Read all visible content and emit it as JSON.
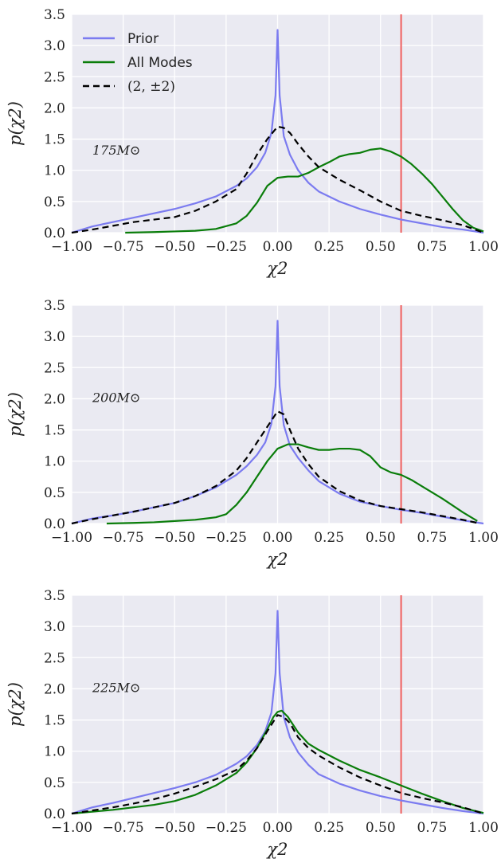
{
  "colors": {
    "background": "#eaeaf2",
    "grid": "#ffffff",
    "prior": "#7b7bf0",
    "all_modes": "#0a7d0a",
    "mode_22": "#000000",
    "true_value": "#f06a6a"
  },
  "legend": {
    "placement": "top-left of first panel",
    "entries": [
      {
        "label": "Prior",
        "style": "solid",
        "color_key": "prior"
      },
      {
        "label": "All Modes",
        "style": "solid",
        "color_key": "all_modes"
      },
      {
        "label": "(2, ±2)",
        "style": "dashed",
        "color_key": "mode_22"
      }
    ]
  },
  "chart_data": [
    {
      "type": "line",
      "annotation": "175M⊙",
      "xlabel": "χ2",
      "ylabel": "p(χ2)",
      "xlim": [
        -1.0,
        1.0
      ],
      "ylim": [
        0,
        3.5
      ],
      "x_ticks": [
        "−1.00",
        "−0.75",
        "−0.50",
        "−0.25",
        "0.00",
        "0.25",
        "0.50",
        "0.75",
        "1.00"
      ],
      "y_ticks": [
        "0.0",
        "0.5",
        "1.0",
        "1.5",
        "2.0",
        "2.5",
        "3.0",
        "3.5"
      ],
      "grid": true,
      "vline": 0.6,
      "series": [
        {
          "name": "Prior",
          "color_key": "prior",
          "dashed": false,
          "x": [
            -1.0,
            -0.9,
            -0.8,
            -0.7,
            -0.6,
            -0.5,
            -0.4,
            -0.3,
            -0.2,
            -0.15,
            -0.1,
            -0.06,
            -0.03,
            -0.01,
            0.0,
            0.01,
            0.03,
            0.06,
            0.1,
            0.15,
            0.2,
            0.3,
            0.4,
            0.5,
            0.6,
            0.7,
            0.8,
            0.9,
            1.0
          ],
          "y": [
            0.0,
            0.1,
            0.17,
            0.24,
            0.31,
            0.38,
            0.47,
            0.58,
            0.75,
            0.87,
            1.05,
            1.28,
            1.6,
            2.2,
            3.25,
            2.2,
            1.55,
            1.25,
            1.0,
            0.8,
            0.66,
            0.5,
            0.38,
            0.29,
            0.21,
            0.15,
            0.09,
            0.05,
            0.0
          ]
        },
        {
          "name": "All Modes",
          "color_key": "all_modes",
          "dashed": false,
          "x": [
            -0.74,
            -0.6,
            -0.5,
            -0.4,
            -0.3,
            -0.2,
            -0.15,
            -0.1,
            -0.05,
            0.0,
            0.05,
            0.1,
            0.15,
            0.2,
            0.25,
            0.3,
            0.35,
            0.4,
            0.45,
            0.5,
            0.55,
            0.6,
            0.65,
            0.7,
            0.75,
            0.8,
            0.85,
            0.9,
            0.95,
            1.0
          ],
          "y": [
            0.0,
            0.01,
            0.02,
            0.03,
            0.06,
            0.15,
            0.27,
            0.48,
            0.75,
            0.88,
            0.9,
            0.9,
            0.96,
            1.05,
            1.13,
            1.22,
            1.26,
            1.28,
            1.33,
            1.35,
            1.3,
            1.22,
            1.1,
            0.95,
            0.78,
            0.58,
            0.38,
            0.2,
            0.08,
            0.02
          ]
        },
        {
          "name": "(2, ±2)",
          "color_key": "mode_22",
          "dashed": true,
          "x": [
            -1.0,
            -0.9,
            -0.8,
            -0.7,
            -0.6,
            -0.5,
            -0.4,
            -0.3,
            -0.2,
            -0.15,
            -0.1,
            -0.05,
            0.0,
            0.03,
            0.06,
            0.1,
            0.15,
            0.2,
            0.3,
            0.4,
            0.5,
            0.6,
            0.7,
            0.8,
            0.9,
            1.0
          ],
          "y": [
            0.0,
            0.05,
            0.11,
            0.17,
            0.21,
            0.25,
            0.35,
            0.5,
            0.7,
            0.95,
            1.25,
            1.5,
            1.7,
            1.68,
            1.6,
            1.42,
            1.22,
            1.05,
            0.85,
            0.68,
            0.5,
            0.35,
            0.27,
            0.2,
            0.12,
            0.0
          ]
        }
      ]
    },
    {
      "type": "line",
      "annotation": "200M⊙",
      "xlabel": "χ2",
      "ylabel": "p(χ2)",
      "xlim": [
        -1.0,
        1.0
      ],
      "ylim": [
        0,
        3.5
      ],
      "x_ticks": [
        "−1.00",
        "−0.75",
        "−0.50",
        "−0.25",
        "0.00",
        "0.25",
        "0.50",
        "0.75",
        "1.00"
      ],
      "y_ticks": [
        "0.0",
        "0.5",
        "1.0",
        "1.5",
        "2.0",
        "2.5",
        "3.0",
        "3.5"
      ],
      "grid": true,
      "vline": 0.6,
      "series": [
        {
          "name": "Prior",
          "color_key": "prior",
          "dashed": false,
          "x": [
            -1.0,
            -0.9,
            -0.8,
            -0.7,
            -0.6,
            -0.5,
            -0.4,
            -0.3,
            -0.2,
            -0.15,
            -0.1,
            -0.06,
            -0.03,
            -0.01,
            0.0,
            0.01,
            0.03,
            0.06,
            0.1,
            0.15,
            0.2,
            0.3,
            0.4,
            0.5,
            0.6,
            0.7,
            0.8,
            0.9,
            1.0
          ],
          "y": [
            0.0,
            0.08,
            0.13,
            0.19,
            0.26,
            0.33,
            0.44,
            0.58,
            0.78,
            0.92,
            1.1,
            1.3,
            1.6,
            2.2,
            3.25,
            2.2,
            1.58,
            1.25,
            1.05,
            0.85,
            0.68,
            0.48,
            0.35,
            0.28,
            0.22,
            0.17,
            0.11,
            0.05,
            0.0
          ]
        },
        {
          "name": "All Modes",
          "color_key": "all_modes",
          "dashed": false,
          "x": [
            -0.83,
            -0.7,
            -0.6,
            -0.5,
            -0.4,
            -0.3,
            -0.25,
            -0.2,
            -0.15,
            -0.1,
            -0.05,
            0.0,
            0.05,
            0.1,
            0.15,
            0.2,
            0.25,
            0.3,
            0.35,
            0.4,
            0.45,
            0.5,
            0.55,
            0.6,
            0.65,
            0.7,
            0.8,
            0.9,
            0.97
          ],
          "y": [
            0.0,
            0.01,
            0.02,
            0.04,
            0.06,
            0.1,
            0.15,
            0.3,
            0.5,
            0.75,
            1.0,
            1.2,
            1.27,
            1.27,
            1.22,
            1.18,
            1.18,
            1.2,
            1.2,
            1.18,
            1.08,
            0.9,
            0.82,
            0.78,
            0.7,
            0.6,
            0.4,
            0.18,
            0.04
          ]
        },
        {
          "name": "(2, ±2)",
          "color_key": "mode_22",
          "dashed": true,
          "x": [
            -1.0,
            -0.9,
            -0.8,
            -0.7,
            -0.6,
            -0.5,
            -0.4,
            -0.3,
            -0.2,
            -0.15,
            -0.1,
            -0.05,
            0.0,
            0.03,
            0.06,
            0.1,
            0.15,
            0.2,
            0.3,
            0.4,
            0.5,
            0.6,
            0.7,
            0.8,
            0.9,
            0.97
          ],
          "y": [
            0.0,
            0.07,
            0.13,
            0.19,
            0.26,
            0.33,
            0.44,
            0.6,
            0.85,
            1.05,
            1.3,
            1.55,
            1.8,
            1.75,
            1.5,
            1.2,
            0.95,
            0.75,
            0.52,
            0.37,
            0.28,
            0.23,
            0.18,
            0.12,
            0.06,
            0.01
          ]
        }
      ]
    },
    {
      "type": "line",
      "annotation": "225M⊙",
      "xlabel": "χ2",
      "ylabel": "p(χ2)",
      "xlim": [
        -1.0,
        1.0
      ],
      "ylim": [
        0,
        3.5
      ],
      "x_ticks": [
        "−1.00",
        "−0.75",
        "−0.50",
        "−0.25",
        "0.00",
        "0.25",
        "0.50",
        "0.75",
        "1.00"
      ],
      "y_ticks": [
        "0.0",
        "0.5",
        "1.0",
        "1.5",
        "2.0",
        "2.5",
        "3.0",
        "3.5"
      ],
      "grid": true,
      "vline": 0.6,
      "series": [
        {
          "name": "Prior",
          "color_key": "prior",
          "dashed": false,
          "x": [
            -1.0,
            -0.9,
            -0.8,
            -0.7,
            -0.6,
            -0.5,
            -0.4,
            -0.3,
            -0.2,
            -0.15,
            -0.1,
            -0.06,
            -0.03,
            -0.01,
            0.0,
            0.01,
            0.03,
            0.06,
            0.1,
            0.15,
            0.2,
            0.3,
            0.4,
            0.5,
            0.6,
            0.7,
            0.8,
            0.9,
            1.0
          ],
          "y": [
            0.0,
            0.1,
            0.17,
            0.25,
            0.33,
            0.41,
            0.5,
            0.62,
            0.8,
            0.92,
            1.1,
            1.32,
            1.62,
            2.25,
            3.25,
            2.25,
            1.55,
            1.22,
            0.98,
            0.78,
            0.63,
            0.48,
            0.37,
            0.28,
            0.21,
            0.15,
            0.09,
            0.04,
            0.0
          ]
        },
        {
          "name": "All Modes",
          "color_key": "all_modes",
          "dashed": false,
          "x": [
            -1.0,
            -0.9,
            -0.8,
            -0.7,
            -0.6,
            -0.5,
            -0.4,
            -0.3,
            -0.2,
            -0.15,
            -0.1,
            -0.05,
            -0.02,
            0.0,
            0.02,
            0.05,
            0.1,
            0.15,
            0.2,
            0.3,
            0.4,
            0.5,
            0.6,
            0.7,
            0.8,
            0.9,
            1.0
          ],
          "y": [
            0.0,
            0.03,
            0.06,
            0.1,
            0.14,
            0.2,
            0.3,
            0.45,
            0.65,
            0.82,
            1.05,
            1.35,
            1.55,
            1.63,
            1.65,
            1.55,
            1.3,
            1.12,
            1.02,
            0.85,
            0.7,
            0.58,
            0.45,
            0.32,
            0.2,
            0.09,
            0.01
          ]
        },
        {
          "name": "(2, ±2)",
          "color_key": "mode_22",
          "dashed": true,
          "x": [
            -1.0,
            -0.9,
            -0.8,
            -0.7,
            -0.6,
            -0.5,
            -0.4,
            -0.3,
            -0.2,
            -0.15,
            -0.1,
            -0.05,
            0.0,
            0.03,
            0.06,
            0.1,
            0.15,
            0.2,
            0.3,
            0.4,
            0.5,
            0.6,
            0.7,
            0.8,
            0.9,
            1.0
          ],
          "y": [
            0.0,
            0.05,
            0.1,
            0.16,
            0.23,
            0.32,
            0.43,
            0.55,
            0.7,
            0.85,
            1.05,
            1.32,
            1.58,
            1.55,
            1.45,
            1.22,
            1.05,
            0.93,
            0.74,
            0.58,
            0.45,
            0.33,
            0.25,
            0.18,
            0.1,
            0.0
          ]
        }
      ]
    }
  ]
}
